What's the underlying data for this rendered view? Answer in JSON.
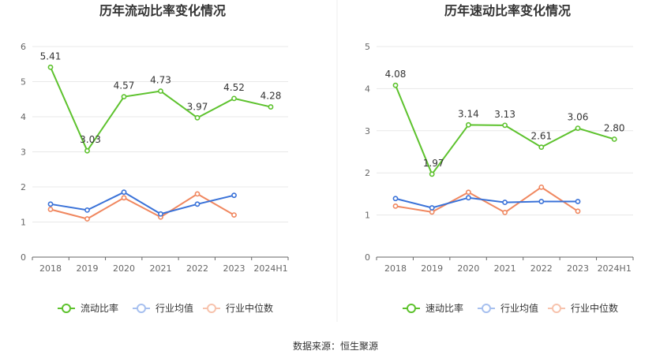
{
  "chart_data": [
    {
      "type": "line",
      "title": "历年流动比率变化情况",
      "categories": [
        "2018",
        "2019",
        "2020",
        "2021",
        "2022",
        "2023",
        "2024H1"
      ],
      "ylim": [
        0,
        6
      ],
      "yticks": [
        0,
        1,
        2,
        3,
        4,
        5,
        6
      ],
      "series": [
        {
          "name": "流动比率",
          "color": "#5dc22d",
          "labeled": true,
          "values": [
            5.41,
            3.03,
            4.57,
            4.73,
            3.97,
            4.52,
            4.28
          ],
          "labels": [
            "5.41",
            "3.03",
            "4.57",
            "4.73",
            "3.97",
            "4.52",
            "4.28"
          ]
        },
        {
          "name": "行业均值",
          "color": "#3a72d8",
          "values": [
            1.51,
            1.34,
            1.85,
            1.23,
            1.51,
            1.76,
            null
          ]
        },
        {
          "name": "行业中位数",
          "color": "#f0875f",
          "values": [
            1.36,
            1.09,
            1.69,
            1.14,
            1.8,
            1.2,
            null
          ]
        }
      ]
    },
    {
      "type": "line",
      "title": "历年速动比率变化情况",
      "categories": [
        "2018",
        "2019",
        "2020",
        "2021",
        "2022",
        "2023",
        "2024H1"
      ],
      "ylim": [
        0,
        5
      ],
      "yticks": [
        0,
        1,
        2,
        3,
        4,
        5
      ],
      "series": [
        {
          "name": "速动比率",
          "color": "#5dc22d",
          "labeled": true,
          "values": [
            4.08,
            1.97,
            3.14,
            3.13,
            2.61,
            3.06,
            2.8
          ],
          "labels": [
            "4.08",
            "1.97",
            "3.14",
            "3.13",
            "2.61",
            "3.06",
            "2.80"
          ]
        },
        {
          "name": "行业均值",
          "color": "#3a72d8",
          "values": [
            1.39,
            1.17,
            1.41,
            1.3,
            1.32,
            1.32,
            null
          ]
        },
        {
          "name": "行业中位数",
          "color": "#f0875f",
          "values": [
            1.21,
            1.07,
            1.54,
            1.06,
            1.66,
            1.09,
            null
          ]
        }
      ]
    }
  ],
  "legend_colors": {
    "main": "#5dc22d",
    "avg": "#a7c0ef",
    "median": "#f7c3ad"
  },
  "source_text": "数据来源：恒生聚源"
}
